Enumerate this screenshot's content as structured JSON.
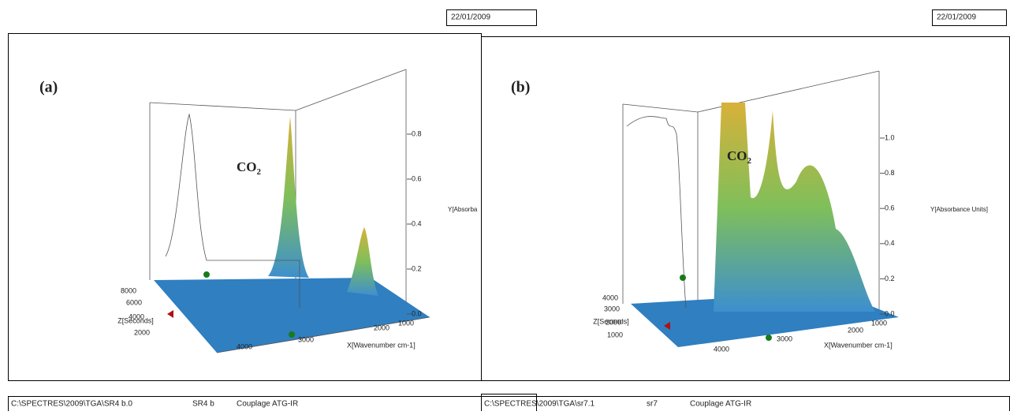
{
  "panels": [
    {
      "date": "22/01/2009",
      "label": "(a)",
      "annotation": "CO",
      "annotation_sub": "2",
      "y_axis_title": "Y[Absorba",
      "x_axis_title": "X[Wavenumber cm-1]",
      "z_axis_title": "Z[Seconds]",
      "y_ticks": [
        "0.8",
        "0.6",
        "0.4",
        "0.2",
        "0.0"
      ],
      "x_ticks": [
        "4000",
        "3000",
        "2000",
        "1000"
      ],
      "z_ticks": [
        "8000",
        "6000",
        "4000",
        "2000"
      ],
      "footer": [
        "C:\\SPECTRES\\2009\\TGA\\SR4 b.0",
        "SR4 b",
        "Couplage ATG-IR"
      ]
    },
    {
      "date": "22/01/2009",
      "label": "(b)",
      "annotation": "CO",
      "annotation_sub": "2",
      "y_axis_title": "Y[Absorbance Units]",
      "x_axis_title": "X[Wavenumber cm-1]",
      "z_axis_title": "Z[Seconds]",
      "y_ticks": [
        "1.0",
        "0.8",
        "0.6",
        "0.4",
        "0.2",
        "0.0"
      ],
      "x_ticks": [
        "4000",
        "3000",
        "2000",
        "1000"
      ],
      "z_ticks": [
        "4000",
        "3000",
        "2000",
        "1000"
      ],
      "footer": [
        "C:\\SPECTRES\\2009\\TGA\\sr7.1",
        "sr7",
        "Couplage ATG-IR"
      ]
    }
  ]
}
